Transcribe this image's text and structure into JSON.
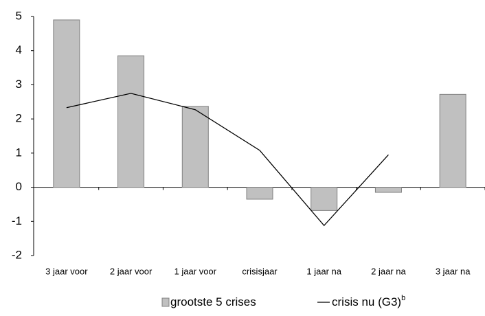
{
  "chart_data": {
    "type": "bar",
    "categories": [
      "3 jaar voor",
      "2 jaar voor",
      "1 jaar voor",
      "crisisjaar",
      "1 jaar na",
      "2 jaar na",
      "3 jaar na"
    ],
    "series": [
      {
        "name": "grootste 5 crises",
        "type": "bar",
        "color": "#c0c0c0",
        "values": [
          4.9,
          3.85,
          2.37,
          -0.35,
          -0.68,
          -0.15,
          2.72
        ]
      },
      {
        "name": "crisis nu (G3)",
        "superscript": "b",
        "type": "line",
        "color": "#000000",
        "values": [
          2.33,
          2.75,
          2.27,
          1.08,
          -1.12,
          0.95,
          null
        ]
      }
    ],
    "ylim": [
      -2,
      5
    ],
    "yticks": [
      -2,
      -1,
      0,
      1,
      2,
      3,
      4,
      5
    ]
  }
}
